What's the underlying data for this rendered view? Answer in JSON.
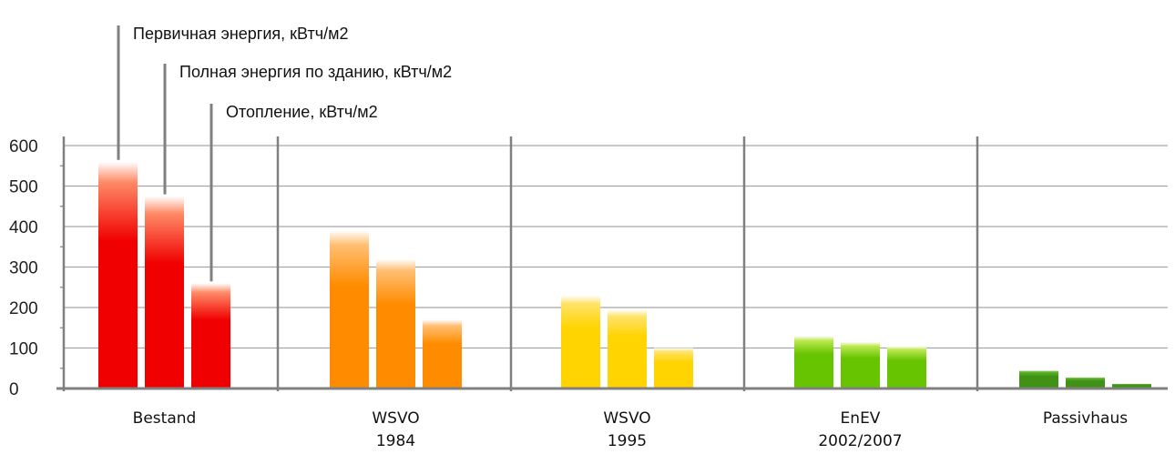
{
  "chart_data": {
    "type": "bar",
    "ylim": [
      0,
      600
    ],
    "y_ticks": [
      0,
      100,
      200,
      300,
      400,
      500,
      600
    ],
    "grid": true,
    "categories": [
      {
        "lines": [
          "Bestand"
        ]
      },
      {
        "lines": [
          "WSVO",
          "1984"
        ]
      },
      {
        "lines": [
          "WSVO",
          "1995"
        ]
      },
      {
        "lines": [
          "EnEV",
          "2002/2007"
        ]
      },
      {
        "lines": [
          "Passivhaus"
        ]
      }
    ],
    "series": [
      {
        "name": "Первичная энергия, кВтч/м2",
        "values": [
          560,
          390,
          230,
          130,
          45
        ]
      },
      {
        "name": "Полная энергия по зданию, кВтч/м2",
        "values": [
          475,
          320,
          195,
          115,
          28
        ]
      },
      {
        "name": "Отопление, кВтч/м2",
        "values": [
          260,
          170,
          100,
          105,
          12
        ]
      }
    ],
    "category_colors": [
      {
        "top": "#ff8a66",
        "bottom": "#f00000"
      },
      {
        "top": "#ffbf73",
        "bottom": "#ff8c00"
      },
      {
        "top": "#ffe36a",
        "bottom": "#ffd400"
      },
      {
        "top": "#bde84f",
        "bottom": "#66c400"
      },
      {
        "top": "#5fb52a",
        "bottom": "#3f9216"
      }
    ],
    "grid_color": "#a6a6a6",
    "axis_color": "#808080"
  }
}
